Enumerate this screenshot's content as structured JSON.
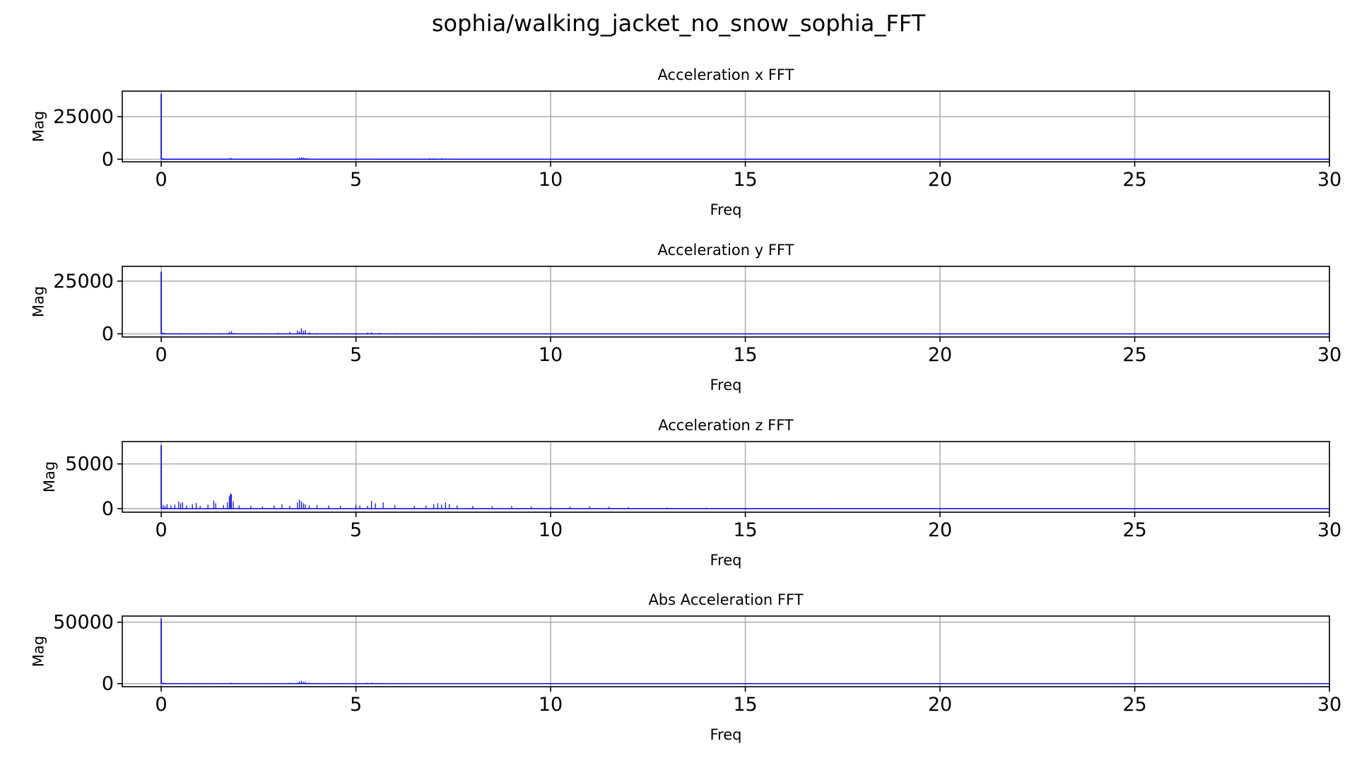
{
  "figure_title": "sophia/walking_jacket_no_snow_sophia_FFT",
  "colors": {
    "line": "#0000ff",
    "grid": "#b0b0b0",
    "axes": "#000000",
    "baseline": "#e8e4cf"
  },
  "chart_data": [
    {
      "type": "line",
      "title": "Acceleration x FFT",
      "xlabel": "Freq",
      "ylabel": "Mag",
      "xlim": [
        -1,
        30
      ],
      "ylim": [
        -1500,
        40000
      ],
      "xticks": [
        0,
        5,
        10,
        15,
        20,
        25,
        30
      ],
      "yticks": [
        0,
        25000
      ],
      "grid": true,
      "series": [
        {
          "x": [
            0,
            0.05,
            0.1,
            0.3,
            0.5,
            1.0,
            1.5,
            1.75,
            1.8,
            1.85,
            2.2,
            2.6,
            3.0,
            3.3,
            3.5,
            3.55,
            3.6,
            3.65,
            3.7,
            3.75,
            3.8,
            4.0,
            4.5,
            5.0,
            5.3,
            5.5,
            6.0,
            6.5,
            6.9,
            7.0,
            7.2,
            7.3,
            7.5,
            8.0,
            9.0,
            10.0,
            12.0,
            15.0,
            20.0,
            25.0,
            30.0
          ],
          "values": [
            38500,
            600,
            300,
            250,
            220,
            200,
            210,
            500,
            800,
            350,
            250,
            260,
            300,
            350,
            500,
            900,
            1200,
            1000,
            800,
            700,
            400,
            300,
            250,
            280,
            350,
            300,
            250,
            280,
            600,
            500,
            550,
            400,
            300,
            200,
            150,
            100,
            80,
            60,
            50,
            40,
            30
          ]
        }
      ]
    },
    {
      "type": "line",
      "title": "Acceleration y FFT",
      "xlabel": "Freq",
      "ylabel": "Mag",
      "xlim": [
        -1,
        30
      ],
      "ylim": [
        -1500,
        32000
      ],
      "xticks": [
        0,
        5,
        10,
        15,
        20,
        25,
        30
      ],
      "yticks": [
        0,
        25000
      ],
      "grid": true,
      "series": [
        {
          "x": [
            0,
            0.05,
            0.1,
            0.5,
            1.0,
            1.5,
            1.75,
            1.8,
            1.85,
            2.5,
            3.0,
            3.3,
            3.5,
            3.55,
            3.6,
            3.65,
            3.7,
            3.8,
            4.0,
            4.5,
            5.0,
            5.3,
            5.4,
            5.6,
            6.0,
            7.0,
            8.0,
            9.0,
            10.0,
            12.0,
            15.0,
            20.0,
            25.0,
            30.0
          ],
          "values": [
            29500,
            700,
            400,
            350,
            300,
            320,
            900,
            1200,
            500,
            350,
            500,
            900,
            1600,
            1200,
            2600,
            1500,
            1800,
            700,
            400,
            350,
            500,
            600,
            700,
            500,
            350,
            300,
            250,
            200,
            150,
            100,
            70,
            50,
            40,
            30
          ]
        }
      ]
    },
    {
      "type": "line",
      "title": "Acceleration z FFT",
      "xlabel": "Freq",
      "ylabel": "Mag",
      "xlim": [
        -1,
        30
      ],
      "ylim": [
        -400,
        7500
      ],
      "xticks": [
        0,
        5,
        10,
        15,
        20,
        25,
        30
      ],
      "yticks": [
        0,
        5000
      ],
      "grid": true,
      "series": [
        {
          "x": [
            0,
            0.05,
            0.1,
            0.15,
            0.25,
            0.35,
            0.45,
            0.5,
            0.55,
            0.65,
            0.8,
            0.9,
            1.0,
            1.2,
            1.35,
            1.4,
            1.6,
            1.7,
            1.75,
            1.78,
            1.8,
            1.85,
            2.0,
            2.3,
            2.6,
            2.9,
            3.1,
            3.3,
            3.5,
            3.55,
            3.6,
            3.65,
            3.7,
            3.8,
            4.0,
            4.3,
            4.6,
            5.0,
            5.1,
            5.3,
            5.4,
            5.5,
            5.7,
            6.0,
            6.5,
            6.8,
            7.0,
            7.1,
            7.2,
            7.3,
            7.4,
            7.6,
            8.0,
            8.5,
            9.0,
            9.5,
            10.0,
            10.5,
            11.0,
            11.5,
            12.0,
            13.0,
            14.0,
            15.0,
            17.0,
            20.0,
            25.0,
            30.0
          ],
          "values": [
            7100,
            400,
            300,
            500,
            350,
            450,
            800,
            600,
            700,
            350,
            500,
            650,
            300,
            450,
            900,
            600,
            400,
            700,
            1400,
            1700,
            1600,
            800,
            350,
            300,
            250,
            350,
            500,
            300,
            700,
            1000,
            800,
            600,
            500,
            350,
            400,
            350,
            300,
            450,
            350,
            300,
            850,
            600,
            700,
            400,
            300,
            350,
            500,
            600,
            450,
            700,
            500,
            350,
            300,
            250,
            280,
            240,
            200,
            220,
            250,
            200,
            150,
            120,
            100,
            80,
            60,
            40,
            30,
            20
          ]
        }
      ]
    },
    {
      "type": "line",
      "title": "Abs Acceleration FFT",
      "xlabel": "Freq",
      "ylabel": "Mag",
      "xlim": [
        -1,
        30
      ],
      "ylim": [
        -2500,
        55000
      ],
      "xticks": [
        0,
        5,
        10,
        15,
        20,
        25,
        30
      ],
      "yticks": [
        0,
        50000
      ],
      "grid": true,
      "series": [
        {
          "x": [
            0,
            0.05,
            0.1,
            0.5,
            1.0,
            1.5,
            1.8,
            2.0,
            2.5,
            3.0,
            3.3,
            3.5,
            3.55,
            3.6,
            3.65,
            3.7,
            3.8,
            4.0,
            4.5,
            5.0,
            5.3,
            5.4,
            5.6,
            6.0,
            7.0,
            8.0,
            9.0,
            10.0,
            12.0,
            15.0,
            20.0,
            25.0,
            30.0
          ],
          "values": [
            53000,
            900,
            500,
            450,
            400,
            450,
            700,
            450,
            400,
            450,
            700,
            1000,
            1800,
            2400,
            1500,
            1700,
            900,
            500,
            450,
            500,
            650,
            800,
            600,
            450,
            400,
            350,
            300,
            250,
            180,
            120,
            80,
            60,
            40
          ]
        }
      ]
    }
  ]
}
